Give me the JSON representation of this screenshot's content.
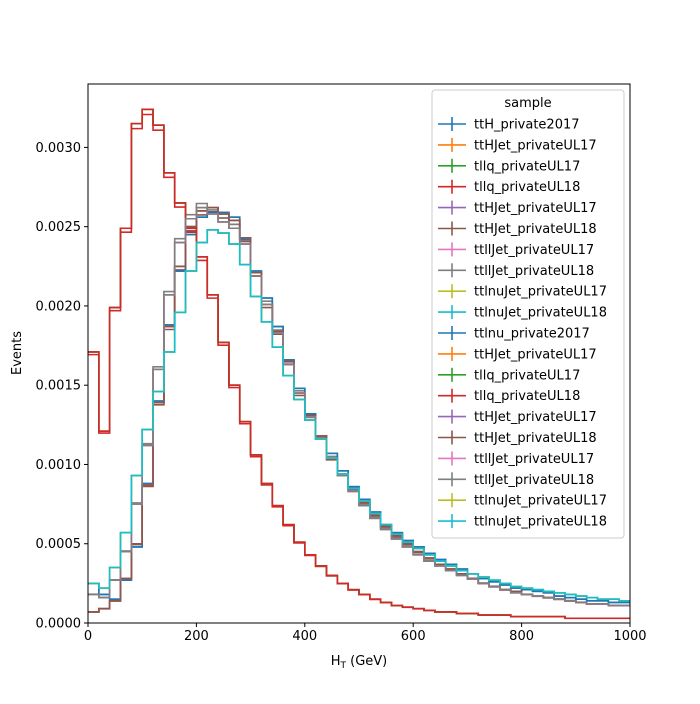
{
  "chart_data": {
    "type": "line",
    "xlabel_main": "H",
    "xlabel_sub": "T",
    "xlabel_unit": " (GeV)",
    "ylabel": "Events",
    "xlim": [
      0,
      1000
    ],
    "ylim": [
      0,
      0.0034
    ],
    "xticks": [
      0,
      200,
      400,
      600,
      800,
      1000
    ],
    "xtick_labels": [
      "0",
      "200",
      "400",
      "600",
      "800",
      "1000"
    ],
    "yticks": [
      0,
      0.0005,
      0.001,
      0.0015,
      0.002,
      0.0025,
      0.003
    ],
    "ytick_labels": [
      "0.0000",
      "0.0005",
      "0.0010",
      "0.0015",
      "0.0020",
      "0.0025",
      "0.0030"
    ],
    "grid": false,
    "legend_title": "sample",
    "legend_position": "top-right",
    "bin_width": 20,
    "series": [
      {
        "name": "ttH_private2017",
        "color": "#1f77b4",
        "profile": "a",
        "scale": 1.0
      },
      {
        "name": "ttHJet_privateUL17",
        "color": "#ff7f0e",
        "profile": "b",
        "scale": 1.0
      },
      {
        "name": "tllq_privateUL17",
        "color": "#2ca02c",
        "profile": "c",
        "scale": 1.0
      },
      {
        "name": "tllq_privateUL18",
        "color": "#d62728",
        "profile": "c",
        "scale": 0.99
      },
      {
        "name": "ttHJet_privateUL17",
        "color": "#9467bd",
        "profile": "b",
        "scale": 1.0
      },
      {
        "name": "ttHJet_privateUL18",
        "color": "#8c564b",
        "profile": "b",
        "scale": 0.99
      },
      {
        "name": "ttllJet_privateUL17",
        "color": "#e377c2",
        "profile": "d",
        "scale": 1.0
      },
      {
        "name": "ttllJet_privateUL18",
        "color": "#7f7f7f",
        "profile": "d",
        "scale": 1.01
      },
      {
        "name": "ttlnuJet_privateUL17",
        "color": "#bcbd22",
        "profile": "e",
        "scale": 1.0
      },
      {
        "name": "ttlnuJet_privateUL18",
        "color": "#17becf",
        "profile": "e",
        "scale": 1.0
      },
      {
        "name": "ttlnu_private2017",
        "color": "#1f77b4",
        "profile": "a",
        "scale": 1.0
      },
      {
        "name": "ttHJet_privateUL17",
        "color": "#ff7f0e",
        "profile": "b",
        "scale": 1.0
      },
      {
        "name": "tllq_privateUL17",
        "color": "#2ca02c",
        "profile": "c",
        "scale": 1.0
      },
      {
        "name": "tllq_privateUL18",
        "color": "#d62728",
        "profile": "c",
        "scale": 1.0
      },
      {
        "name": "ttHJet_privateUL17",
        "color": "#9467bd",
        "profile": "b",
        "scale": 1.0
      },
      {
        "name": "ttHJet_privateUL18",
        "color": "#8c564b",
        "profile": "b",
        "scale": 1.0
      },
      {
        "name": "ttllJet_privateUL17",
        "color": "#e377c2",
        "profile": "d",
        "scale": 1.0
      },
      {
        "name": "ttllJet_privateUL18",
        "color": "#7f7f7f",
        "profile": "d",
        "scale": 1.0
      },
      {
        "name": "ttlnuJet_privateUL17",
        "color": "#bcbd22",
        "profile": "e",
        "scale": 1.0
      },
      {
        "name": "ttlnuJet_privateUL18",
        "color": "#17becf",
        "profile": "e",
        "scale": 1.0
      }
    ],
    "profiles": {
      "a": [
        0.00025,
        0.00018,
        0.00015,
        0.00027,
        0.00048,
        0.00088,
        0.0014,
        0.00188,
        0.00222,
        0.00245,
        0.00256,
        0.00259,
        0.00259,
        0.00256,
        0.00242,
        0.00222,
        0.00205,
        0.00187,
        0.00166,
        0.00148,
        0.00132,
        0.00118,
        0.00107,
        0.00096,
        0.00086,
        0.00078,
        0.0007,
        0.00062,
        0.00057,
        0.00052,
        0.00048,
        0.00044,
        0.0004,
        0.00037,
        0.00034,
        0.00031,
        0.00028,
        0.00026,
        0.00024,
        0.00022,
        0.00021,
        0.0002,
        0.00019,
        0.00017,
        0.00016,
        0.00015,
        0.00014,
        0.00014,
        0.00013,
        0.00013
      ],
      "b": [
        7e-05,
        9e-05,
        0.00014,
        0.00028,
        0.0005,
        0.00087,
        0.00139,
        0.00187,
        0.00225,
        0.0025,
        0.0026,
        0.00262,
        0.00258,
        0.00254,
        0.00243,
        0.00221,
        0.00201,
        0.00184,
        0.00165,
        0.00145,
        0.00131,
        0.00118,
        0.00104,
        0.00094,
        0.00085,
        0.00076,
        0.00068,
        0.00061,
        0.00055,
        0.0005,
        0.00045,
        0.00041,
        0.00037,
        0.00034,
        0.00031,
        0.00028,
        0.00025,
        0.00023,
        0.00021,
        0.0002,
        0.00018,
        0.00017,
        0.00016,
        0.00015,
        0.00014,
        0.00013,
        0.00012,
        0.00012,
        0.00011,
        0.00011
      ],
      "c": [
        0.00171,
        0.00121,
        0.00199,
        0.00249,
        0.00315,
        0.00324,
        0.00314,
        0.00284,
        0.00265,
        0.00249,
        0.00231,
        0.00207,
        0.00177,
        0.0015,
        0.00127,
        0.00106,
        0.00088,
        0.00074,
        0.00062,
        0.00051,
        0.00043,
        0.00036,
        0.0003,
        0.00025,
        0.00021,
        0.00018,
        0.00015,
        0.00013,
        0.00011,
        0.0001,
        9e-05,
        8e-05,
        7e-05,
        7e-05,
        6e-05,
        6e-05,
        5e-05,
        5e-05,
        5e-05,
        4e-05,
        4e-05,
        4e-05,
        4e-05,
        4e-05,
        3e-05,
        3e-05,
        3e-05,
        3e-05,
        3e-05,
        3e-05
      ],
      "d": [
        0.00018,
        0.00016,
        0.00027,
        0.00045,
        0.00075,
        0.00112,
        0.0016,
        0.00207,
        0.0024,
        0.00255,
        0.00262,
        0.00258,
        0.00253,
        0.00249,
        0.00239,
        0.00219,
        0.00201,
        0.00183,
        0.00163,
        0.00145,
        0.0013,
        0.00116,
        0.00104,
        0.00093,
        0.00083,
        0.00074,
        0.00066,
        0.00059,
        0.00053,
        0.00048,
        0.00043,
        0.00039,
        0.00036,
        0.00033,
        0.0003,
        0.00028,
        0.00025,
        0.00023,
        0.00021,
        0.00019,
        0.00018,
        0.00017,
        0.00016,
        0.00015,
        0.00014,
        0.00013,
        0.00012,
        0.00012,
        0.00011,
        0.00011
      ],
      "e": [
        0.00025,
        0.00022,
        0.00035,
        0.00057,
        0.00093,
        0.00122,
        0.00146,
        0.00171,
        0.00196,
        0.00222,
        0.0024,
        0.00248,
        0.00246,
        0.00239,
        0.00226,
        0.00206,
        0.0019,
        0.00174,
        0.00156,
        0.00141,
        0.00128,
        0.00116,
        0.00104,
        0.00094,
        0.00085,
        0.00077,
        0.00069,
        0.00062,
        0.00056,
        0.00051,
        0.00047,
        0.00043,
        0.00039,
        0.00036,
        0.00033,
        0.00031,
        0.00029,
        0.00027,
        0.00025,
        0.00023,
        0.00022,
        0.00021,
        0.0002,
        0.00019,
        0.00018,
        0.00017,
        0.00016,
        0.00015,
        0.00015,
        0.00014
      ]
    }
  }
}
